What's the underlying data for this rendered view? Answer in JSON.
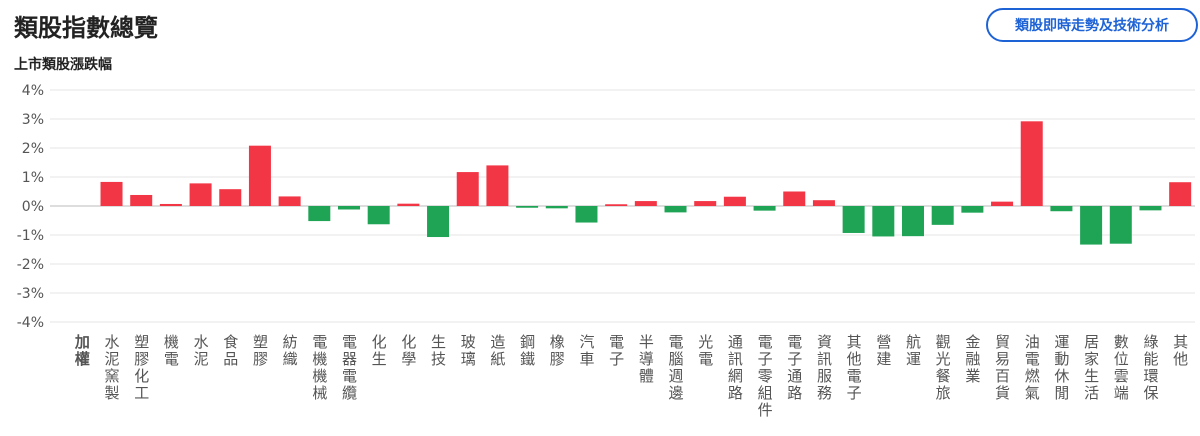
{
  "header": {
    "title": "類股指數總覽",
    "button": "類股即時走勢及技術分析"
  },
  "chart_data": {
    "type": "bar",
    "title": "上市類股漲跌幅",
    "categories": [
      "加權",
      "水泥窯製",
      "塑膠化工",
      "機電",
      "水泥",
      "食品",
      "塑膠",
      "紡織",
      "電機機械",
      "電器電纜",
      "化生",
      "化學",
      "生技",
      "玻璃",
      "造紙",
      "鋼鐵",
      "橡膠",
      "汽車",
      "電子",
      "半導體",
      "電腦週邊",
      "光電",
      "通訊網路",
      "電子零組件",
      "電子通路",
      "資訊服務",
      "其他電子",
      "營建",
      "航運",
      "觀光餐旅",
      "金融業",
      "貿易百貨",
      "油電燃氣",
      "運動休閒",
      "居家生活",
      "數位雲端",
      "綠能環保",
      "其他"
    ],
    "values": [
      0,
      0.83,
      0.38,
      0.07,
      0.78,
      0.58,
      2.08,
      0.33,
      -0.52,
      -0.12,
      -0.63,
      0.08,
      -1.07,
      1.17,
      1.4,
      -0.06,
      -0.08,
      -0.57,
      0.06,
      0.17,
      -0.22,
      0.17,
      0.32,
      -0.16,
      0.5,
      0.2,
      -0.93,
      -1.05,
      -1.04,
      -0.65,
      -0.23,
      0.15,
      2.92,
      -0.18,
      -1.33,
      -1.3,
      -0.15,
      0.82
    ],
    "up_color": "#f23645",
    "down_color": "#1fa355",
    "ylim": [
      -4,
      4
    ],
    "yticks": [
      {
        "value": 4,
        "label": "4%"
      },
      {
        "value": 3,
        "label": "3%"
      },
      {
        "value": 2,
        "label": "2%"
      },
      {
        "value": 1,
        "label": "1%"
      },
      {
        "value": 0,
        "label": "0%"
      },
      {
        "value": -1,
        "label": "-1%"
      },
      {
        "value": -2,
        "label": "-2%"
      },
      {
        "value": -3,
        "label": "-3%"
      },
      {
        "value": -4,
        "label": "-4%"
      }
    ],
    "grid": true
  }
}
